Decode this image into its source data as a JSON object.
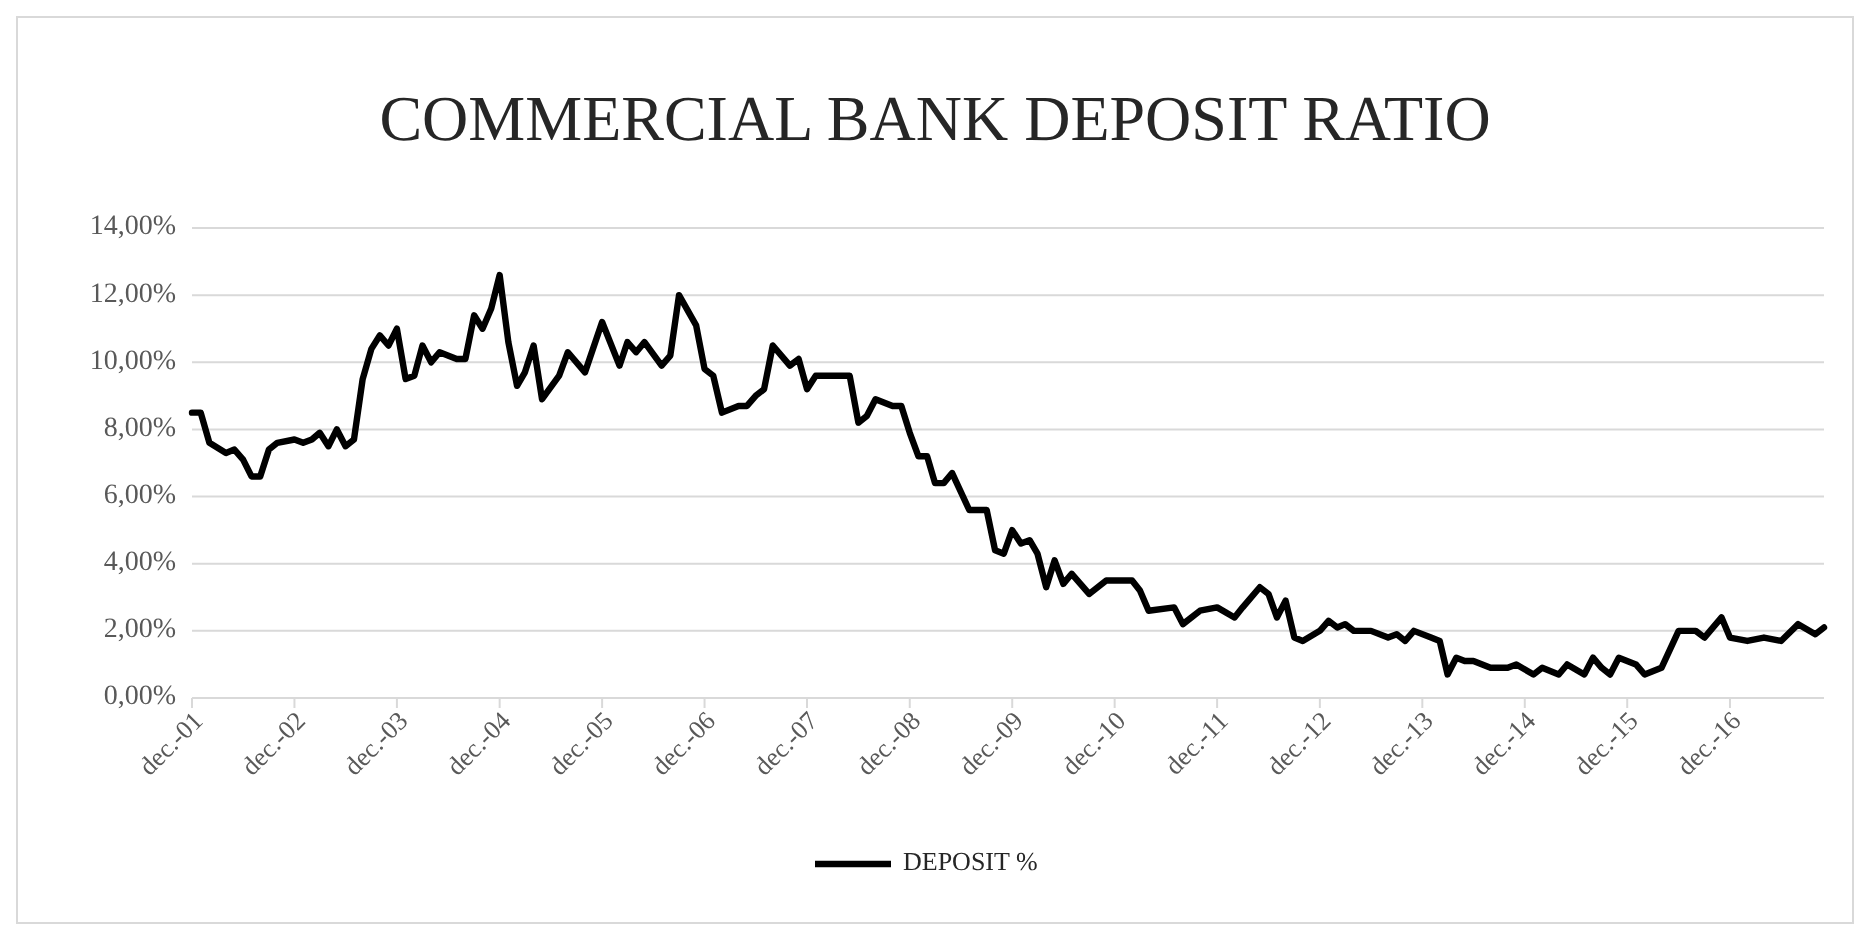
{
  "chart_data": {
    "type": "line",
    "title": "COMMERCIAL BANK DEPOSIT RATIO",
    "x": [
      "2001-12",
      "2002-01",
      "2002-02",
      "2002-04",
      "2002-05",
      "2002-06",
      "2002-07",
      "2002-08",
      "2002-09",
      "2002-10",
      "2002-12",
      "2003-01",
      "2003-02",
      "2003-03",
      "2003-04",
      "2003-05",
      "2003-06",
      "2003-07",
      "2003-08",
      "2003-09",
      "2003-10",
      "2003-11",
      "2003-12",
      "2004-01",
      "2004-02",
      "2004-03",
      "2004-04",
      "2004-05",
      "2004-07",
      "2004-08",
      "2004-09",
      "2004-10",
      "2004-11",
      "2004-12",
      "2005-01",
      "2005-02",
      "2005-03",
      "2005-04",
      "2005-05",
      "2005-07",
      "2005-08",
      "2005-10",
      "2005-12",
      "2006-02",
      "2006-03",
      "2006-04",
      "2006-05",
      "2006-07",
      "2006-08",
      "2006-09",
      "2006-11",
      "2006-12",
      "2007-01",
      "2007-02",
      "2007-04",
      "2007-05",
      "2007-06",
      "2007-07",
      "2007-08",
      "2007-10",
      "2007-11",
      "2007-12",
      "2008-01",
      "2008-02",
      "2008-05",
      "2008-06",
      "2008-07",
      "2008-08",
      "2008-10",
      "2008-11",
      "2008-12",
      "2009-01",
      "2009-02",
      "2009-03",
      "2009-04",
      "2009-05",
      "2009-07",
      "2009-09",
      "2009-10",
      "2009-11",
      "2009-12",
      "2010-01",
      "2010-02",
      "2010-03",
      "2010-04",
      "2010-05",
      "2010-06",
      "2010-07",
      "2010-08",
      "2010-09",
      "2010-11",
      "2011-02",
      "2011-03",
      "2011-04",
      "2011-07",
      "2011-08",
      "2011-10",
      "2011-12",
      "2012-02",
      "2012-03",
      "2012-05",
      "2012-06",
      "2012-07",
      "2012-08",
      "2012-09",
      "2012-10",
      "2012-12",
      "2013-01",
      "2013-02",
      "2013-03",
      "2013-04",
      "2013-06",
      "2013-08",
      "2013-09",
      "2013-10",
      "2013-11",
      "2014-01",
      "2014-02",
      "2014-03",
      "2014-04",
      "2014-05",
      "2014-06",
      "2014-08",
      "2014-10",
      "2014-11",
      "2015-01",
      "2015-02",
      "2015-04",
      "2015-05",
      "2015-07",
      "2015-08",
      "2015-09",
      "2015-10",
      "2015-11",
      "2016-01",
      "2016-02",
      "2016-04",
      "2016-06",
      "2016-08",
      "2016-09",
      "2016-11",
      "2016-12",
      "2017-02",
      "2017-04",
      "2017-06",
      "2017-08",
      "2017-10",
      "2017-11"
    ],
    "series": [
      {
        "name": "DEPOSIT %",
        "color": "#000000",
        "values": [
          8.5,
          8.5,
          7.6,
          7.3,
          7.4,
          7.1,
          6.6,
          6.6,
          7.4,
          7.6,
          7.7,
          7.6,
          7.7,
          7.9,
          7.5,
          8.0,
          7.5,
          7.7,
          9.5,
          10.4,
          10.8,
          10.5,
          11.0,
          9.5,
          9.6,
          10.5,
          10.0,
          10.3,
          10.1,
          10.1,
          11.4,
          11.0,
          11.6,
          12.6,
          10.6,
          9.3,
          9.7,
          10.5,
          8.9,
          9.6,
          10.3,
          9.7,
          11.2,
          9.9,
          10.6,
          10.3,
          10.6,
          9.9,
          10.2,
          12.0,
          11.1,
          9.8,
          9.6,
          8.5,
          8.7,
          8.7,
          9.0,
          9.2,
          10.5,
          9.9,
          10.1,
          9.2,
          9.6,
          9.6,
          9.6,
          8.2,
          8.4,
          8.9,
          8.7,
          8.7,
          7.9,
          7.2,
          7.2,
          6.4,
          6.4,
          6.7,
          5.6,
          5.6,
          4.4,
          4.3,
          5.0,
          4.6,
          4.7,
          4.3,
          3.3,
          4.1,
          3.4,
          3.7,
          3.4,
          3.1,
          3.5,
          3.5,
          3.2,
          2.6,
          2.7,
          2.2,
          2.6,
          2.7,
          2.4,
          2.7,
          3.3,
          3.1,
          2.4,
          2.9,
          1.8,
          1.7,
          2.0,
          2.3,
          2.1,
          2.2,
          2.0,
          2.0,
          1.8,
          1.9,
          1.7,
          2.0,
          1.8,
          1.7,
          0.7,
          1.2,
          1.1,
          1.1,
          0.9,
          0.9,
          1.0,
          0.7,
          0.9,
          0.7,
          1.0,
          0.7,
          1.2,
          0.9,
          0.7,
          1.2,
          1.0,
          0.7,
          0.9,
          2.0,
          2.0,
          1.8,
          2.4,
          1.8,
          1.7,
          1.8,
          1.7,
          2.2,
          1.9,
          2.1
        ]
      }
    ],
    "xlim": [
      "2001-12",
      "2017-11"
    ],
    "xticks": [
      {
        "value": "2001-12",
        "label": "dec.-01"
      },
      {
        "value": "2002-12",
        "label": "dec.-02"
      },
      {
        "value": "2003-12",
        "label": "dec.-03"
      },
      {
        "value": "2004-12",
        "label": "dec.-04"
      },
      {
        "value": "2005-12",
        "label": "dec.-05"
      },
      {
        "value": "2006-12",
        "label": "dec.-06"
      },
      {
        "value": "2007-12",
        "label": "dec.-07"
      },
      {
        "value": "2008-12",
        "label": "dec.-08"
      },
      {
        "value": "2009-12",
        "label": "dec.-09"
      },
      {
        "value": "2010-12",
        "label": "dec.-10"
      },
      {
        "value": "2011-12",
        "label": "dec.-11"
      },
      {
        "value": "2012-12",
        "label": "dec.-12"
      },
      {
        "value": "2013-12",
        "label": "dec.-13"
      },
      {
        "value": "2014-12",
        "label": "dec.-14"
      },
      {
        "value": "2015-12",
        "label": "dec.-15"
      },
      {
        "value": "2016-12",
        "label": "dec.-16"
      }
    ],
    "ylim": [
      0,
      14
    ],
    "yticks": [
      {
        "value": 0,
        "label": "0,00%"
      },
      {
        "value": 2,
        "label": "2,00%"
      },
      {
        "value": 4,
        "label": "4,00%"
      },
      {
        "value": 6,
        "label": "6,00%"
      },
      {
        "value": 8,
        "label": "8,00%"
      },
      {
        "value": 10,
        "label": "10,00%"
      },
      {
        "value": 12,
        "label": "12,00%"
      },
      {
        "value": 14,
        "label": "14,00%"
      }
    ],
    "grid": "y",
    "legend": "bottom",
    "line_style": "solid",
    "marker": "none"
  }
}
